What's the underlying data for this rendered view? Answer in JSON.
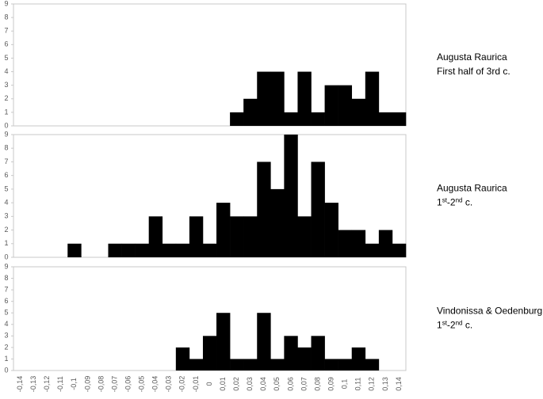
{
  "chart_data": [
    {
      "type": "bar",
      "color": "#000000",
      "ylim": [
        0,
        9
      ],
      "yticks": [
        0,
        1,
        2,
        3,
        4,
        5,
        6,
        7,
        8,
        9
      ],
      "label": "Augusta Raurica",
      "sublabel_parts": [
        {
          "text": "First half of 3rd c."
        }
      ],
      "values": [
        0,
        0,
        0,
        0,
        0,
        0,
        0,
        0,
        0,
        0,
        0,
        0,
        0,
        0,
        0,
        0,
        1,
        2,
        4,
        4,
        1,
        4,
        1,
        3,
        3,
        2,
        4,
        1,
        1
      ]
    },
    {
      "type": "bar",
      "color": "#000000",
      "ylim": [
        0,
        9
      ],
      "yticks": [
        0,
        1,
        2,
        3,
        4,
        5,
        6,
        7,
        8,
        9
      ],
      "label": "Augusta Raurica",
      "sublabel_parts": [
        {
          "text": "1"
        },
        {
          "text": "st",
          "sup": true
        },
        {
          "text": "-2"
        },
        {
          "text": "nd",
          "sup": true
        },
        {
          "text": " c."
        }
      ],
      "values": [
        0,
        0,
        0,
        0,
        1,
        0,
        0,
        1,
        1,
        1,
        3,
        1,
        1,
        3,
        1,
        4,
        3,
        3,
        7,
        5,
        9,
        3,
        7,
        4,
        2,
        2,
        1,
        2,
        1
      ]
    },
    {
      "type": "bar",
      "color": "#000000",
      "ylim": [
        0,
        9
      ],
      "yticks": [
        0,
        1,
        2,
        3,
        4,
        5,
        6,
        7,
        8,
        9
      ],
      "label": "Vindonissa & Oedenburg",
      "sublabel_parts": [
        {
          "text": "1"
        },
        {
          "text": "st",
          "sup": true
        },
        {
          "text": "-2"
        },
        {
          "text": "nd",
          "sup": true
        },
        {
          "text": " c."
        }
      ],
      "categories": [
        "-0,14",
        "-0,13",
        "-0,12",
        "-0,11",
        "-0,1",
        "-0,09",
        "-0,08",
        "-0,07",
        "-0,06",
        "-0,05",
        "-0,04",
        "-0,03",
        "-0,02",
        "-0,01",
        "0",
        "0,01",
        "0,02",
        "0,03",
        "0,04",
        "0,05",
        "0,06",
        "0,07",
        "0,08",
        "0,09",
        "0,1",
        "0,11",
        "0,12",
        "0,13",
        "0,14"
      ],
      "values": [
        0,
        0,
        0,
        0,
        0,
        0,
        0,
        0,
        0,
        0,
        0,
        0,
        2,
        1,
        3,
        5,
        1,
        1,
        5,
        1,
        3,
        2,
        3,
        1,
        1,
        2,
        1,
        0,
        0
      ]
    }
  ]
}
